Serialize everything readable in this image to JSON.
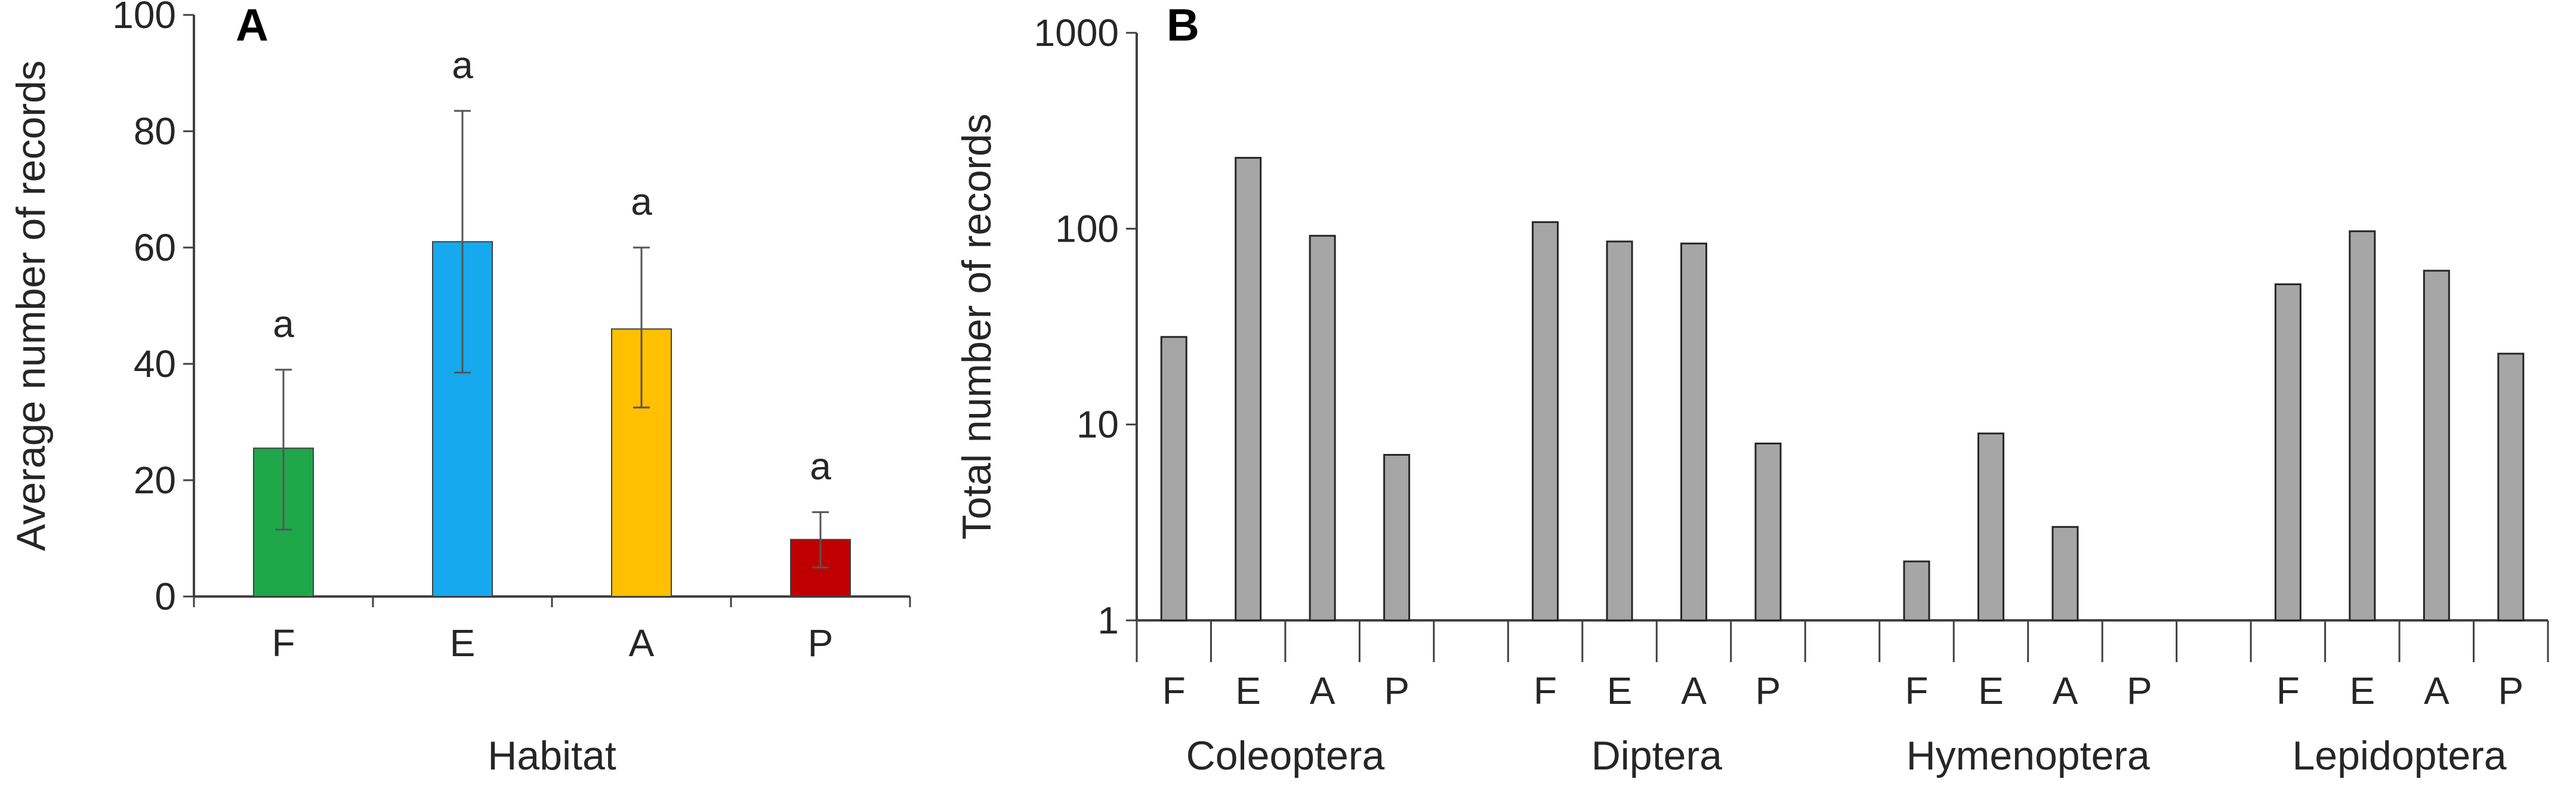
{
  "panels": {
    "A": {
      "letter": "A",
      "chart_data": {
        "type": "bar",
        "categories": [
          "F",
          "E",
          "A",
          "P"
        ],
        "values": [
          25.5,
          61,
          46,
          9.8
        ],
        "errors_low": [
          11.5,
          38.5,
          32.5,
          5
        ],
        "errors_high": [
          39,
          83.5,
          60,
          14.5
        ],
        "significance_labels": [
          "a",
          "a",
          "a",
          "a"
        ],
        "colors": [
          "#1ea84a",
          "#16a9ee",
          "#ffc000",
          "#c00000"
        ],
        "xlabel": "Habitat",
        "ylabel": "Average number of records",
        "ylim": [
          0,
          100
        ],
        "yticks": [
          "0",
          "20",
          "40",
          "60",
          "80",
          "100"
        ],
        "grid": false
      }
    },
    "B": {
      "letter": "B",
      "chart_data": {
        "type": "bar",
        "scale": "log",
        "groups": [
          "Coleoptera",
          "Diptera",
          "Hymenoptera",
          "Lepidoptera"
        ],
        "categories": [
          "F",
          "E",
          "A",
          "P"
        ],
        "values": [
          [
            28,
            230,
            92,
            7
          ],
          [
            108,
            86,
            84,
            8
          ],
          [
            2,
            9,
            3,
            null
          ],
          [
            52,
            97,
            61,
            23
          ]
        ],
        "bar_color": "#a6a6a6",
        "ylabel": "Total number of records",
        "ylim": [
          1,
          1000
        ],
        "yticks": [
          "1",
          "10",
          "100",
          "1000"
        ],
        "grid": false
      }
    }
  }
}
